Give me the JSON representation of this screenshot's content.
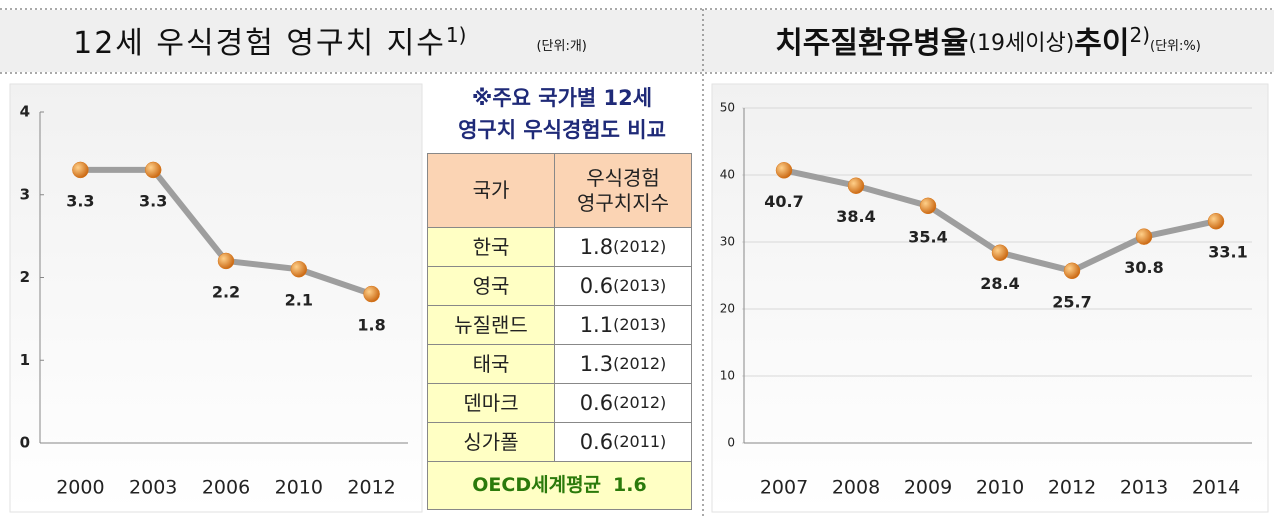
{
  "chart_data": [
    {
      "type": "line",
      "title_parts": [
        "12세 우식경험 영구치 지수",
        "1)",
        "(단위:개)"
      ],
      "categories": [
        "2000",
        "2003",
        "2006",
        "2010",
        "2012"
      ],
      "values": [
        3.3,
        3.3,
        2.2,
        2.1,
        1.8
      ],
      "color": "#9e9e9e",
      "marker_color": "#d9781c",
      "ylim": [
        0,
        4
      ],
      "yticks": [
        0,
        1,
        2,
        3,
        4
      ],
      "grid": false
    },
    {
      "type": "line",
      "title_parts": [
        "치주질환유병율",
        "(19세이상)",
        "추이",
        "2)",
        "(단위:%)"
      ],
      "categories": [
        "2007",
        "2008",
        "2009",
        "2010",
        "2012",
        "2013",
        "2014"
      ],
      "values": [
        40.7,
        38.4,
        35.4,
        28.4,
        25.7,
        30.8,
        33.1
      ],
      "color": "#9e9e9e",
      "marker_color": "#d9781c",
      "ylim": [
        0,
        50
      ],
      "yticks": [
        0,
        10,
        20,
        30,
        40,
        50
      ],
      "grid": true
    }
  ],
  "table": {
    "title": [
      "※주요 국가별 12세",
      "영구치 우식경험도 비교"
    ],
    "header": [
      "국가",
      [
        "우식경험",
        "영구치지수"
      ]
    ],
    "rows": [
      [
        "한국",
        "1.8",
        "(2012)"
      ],
      [
        "영국",
        "0.6",
        "(2013)"
      ],
      [
        "뉴질랜드",
        "1.1",
        "(2013)"
      ],
      [
        "태국",
        "1.3",
        "(2012)"
      ],
      [
        "덴마크",
        "0.6",
        "(2012)"
      ],
      [
        "싱가폴",
        "0.6",
        "(2011)"
      ]
    ],
    "footer": [
      "OECD세계평균",
      "1.6"
    ]
  }
}
